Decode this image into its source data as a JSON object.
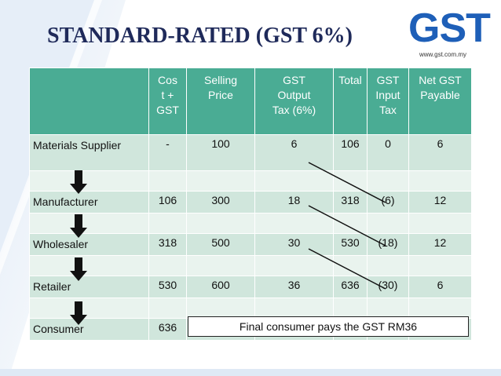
{
  "title": "STANDARD-RATED (GST 6%)",
  "logo": {
    "text": "GST",
    "url": "www.gst.com.my",
    "color": "#1e5fb8"
  },
  "table": {
    "headers": [
      "",
      "Cos\nt +\nGST",
      "Selling\nPrice",
      "GST\nOutput\nTax (6%)",
      "Total",
      "GST\nInput\nTax",
      "Net GST\nPayable"
    ],
    "rows": [
      {
        "label": "Materials Supplier",
        "cost": "-",
        "selling": "100",
        "output": "6",
        "total": "106",
        "input": "0",
        "net": "6"
      },
      {
        "label": "Manufacturer",
        "cost": "106",
        "selling": "300",
        "output": "18",
        "total": "318",
        "input": "(6)",
        "net": "12"
      },
      {
        "label": "Wholesaler",
        "cost": "318",
        "selling": "500",
        "output": "30",
        "total": "530",
        "input": "(18)",
        "net": "12"
      },
      {
        "label": "Retailer",
        "cost": "530",
        "selling": "600",
        "output": "36",
        "total": "636",
        "input": "(30)",
        "net": "6"
      },
      {
        "label": "Consumer",
        "cost": "636"
      }
    ]
  },
  "final_note": "Final consumer pays the GST RM36",
  "colors": {
    "header": "#4aac94",
    "row_dark": "#d0e6dc",
    "row_light": "#e9f3ee",
    "title": "#1f2a5a"
  }
}
